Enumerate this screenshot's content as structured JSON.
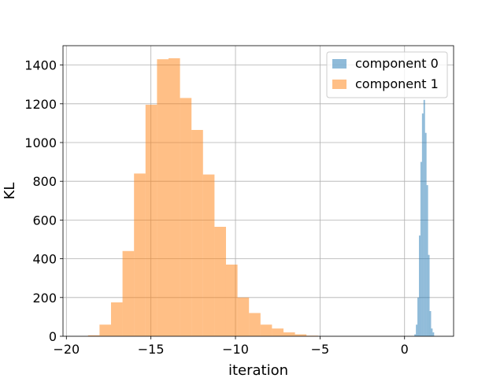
{
  "chart_data": {
    "type": "histogram",
    "xlabel": "iteration",
    "ylabel": "KL",
    "xlim": [
      -20.2,
      2.9
    ],
    "ylim": [
      0,
      1500
    ],
    "xticks": [
      -20,
      -15,
      -10,
      -5,
      0
    ],
    "xtick_labels": [
      "−20",
      "−15",
      "−10",
      "−5",
      "0"
    ],
    "yticks": [
      0,
      200,
      400,
      600,
      800,
      1000,
      1200,
      1400
    ],
    "ytick_labels": [
      "0",
      "200",
      "400",
      "600",
      "800",
      "1000",
      "1200",
      "1400"
    ],
    "grid": true,
    "legend_position": "top-right",
    "series": [
      {
        "name": "component 0",
        "color": "#1f77b4",
        "opacity": 0.5,
        "bin_edges": [
          0.58,
          0.67,
          0.76,
          0.85,
          0.94,
          1.03,
          1.12,
          1.21,
          1.3,
          1.39,
          1.48,
          1.57,
          1.66,
          1.75
        ],
        "counts": [
          10,
          60,
          200,
          520,
          900,
          1150,
          1220,
          1050,
          780,
          420,
          130,
          40,
          20
        ]
      },
      {
        "name": "component 1",
        "color": "#ff7f0e",
        "opacity": 0.5,
        "bin_edges": [
          -18.72,
          -18.04,
          -17.36,
          -16.68,
          -16.0,
          -15.32,
          -14.64,
          -13.96,
          -13.28,
          -12.6,
          -11.92,
          -11.24,
          -10.56,
          -9.88,
          -9.2,
          -8.52,
          -7.84,
          -7.16,
          -6.48,
          -5.8,
          -5.12
        ],
        "counts": [
          5,
          60,
          175,
          440,
          840,
          1195,
          1430,
          1435,
          1230,
          1065,
          835,
          565,
          370,
          200,
          120,
          60,
          40,
          20,
          10,
          3
        ]
      }
    ]
  }
}
